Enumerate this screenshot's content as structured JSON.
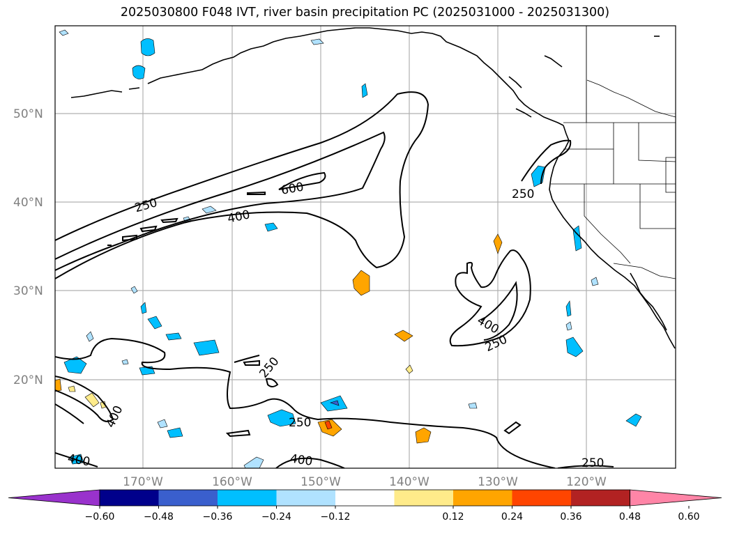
{
  "title": "2025030800 F048 IVT, river basin precipitation PC (2025031000 - 2025031300)",
  "map": {
    "projection": "cylindrical",
    "lon_range": [
      -179,
      -109
    ],
    "lat_range": [
      10,
      60
    ],
    "lat_labels": [
      "20°N",
      "30°N",
      "40°N",
      "50°N"
    ],
    "lon_labels": [
      "170°W",
      "160°W",
      "150°W",
      "140°W",
      "130°W",
      "120°W"
    ],
    "grid": true
  },
  "ivt_contour_labels": [
    {
      "text": "250",
      "id": "ivt-label-250-north"
    },
    {
      "text": "400",
      "id": "ivt-label-400-north"
    },
    {
      "text": "600",
      "id": "ivt-label-600"
    },
    {
      "text": "250",
      "id": "ivt-label-250-coast"
    },
    {
      "text": "400",
      "id": "ivt-label-400-east"
    },
    {
      "text": "250",
      "id": "ivt-label-250-east"
    },
    {
      "text": "250",
      "id": "ivt-label-250-south"
    },
    {
      "text": "400",
      "id": "ivt-label-400-west"
    },
    {
      "text": "250",
      "id": "ivt-label-250-bottom"
    },
    {
      "text": "400",
      "id": "ivt-label-400-bottom-left"
    },
    {
      "text": "400",
      "id": "ivt-label-400-bottom-mid"
    },
    {
      "text": "250",
      "id": "ivt-label-250-bottom-right"
    }
  ],
  "colorbar": {
    "ticks": [
      "−0.60",
      "−0.48",
      "−0.36",
      "−0.24",
      "−0.12",
      "0.12",
      "0.24",
      "0.36",
      "0.48",
      "0.60"
    ],
    "colors": [
      "#9932cc",
      "#00008b",
      "#3a5fcd",
      "#00bfff",
      "#b0e2ff",
      "#ffffff",
      "#ffeb8a",
      "#ffa500",
      "#ff4500",
      "#b22222",
      "#ff85a7"
    ]
  }
}
